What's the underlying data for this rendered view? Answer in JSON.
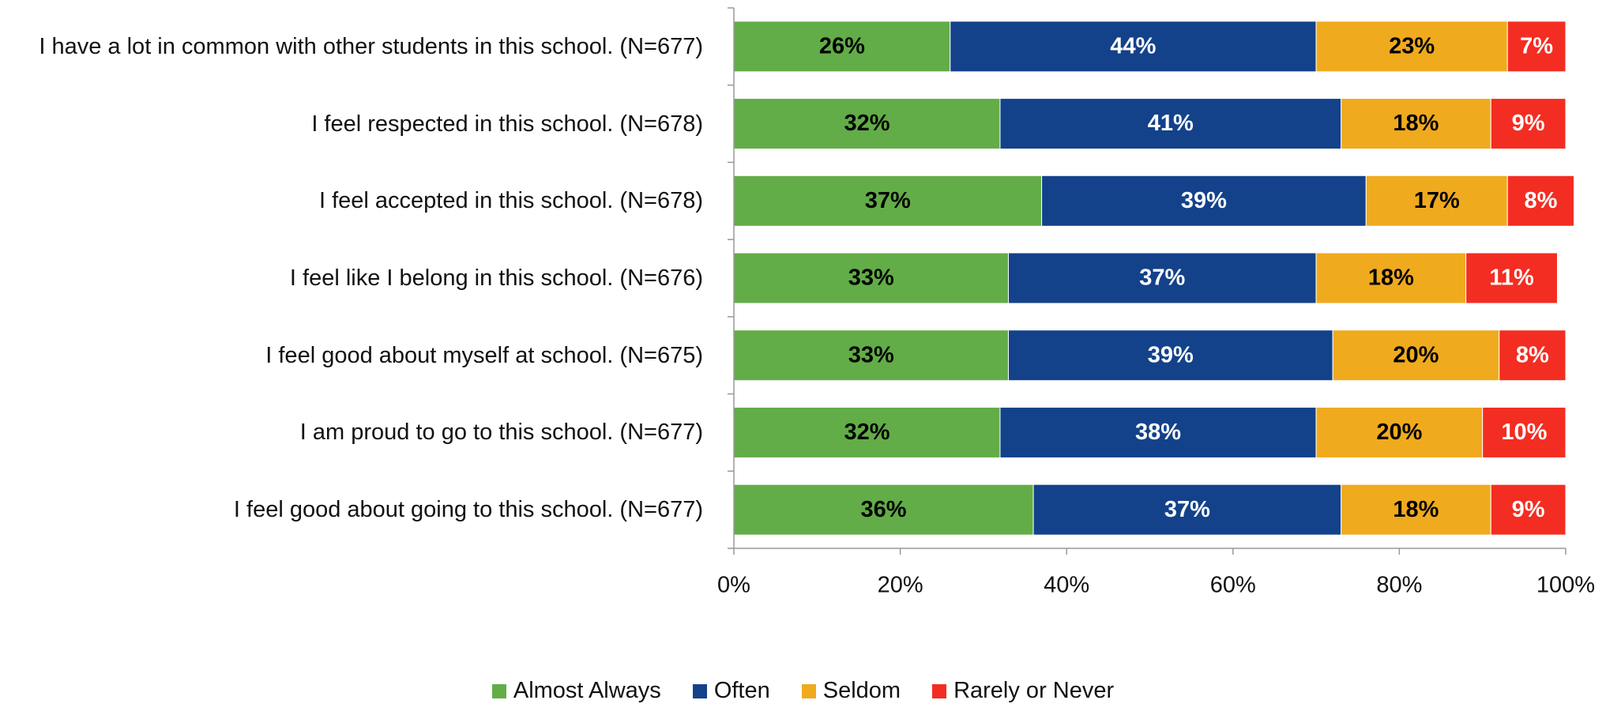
{
  "chart_data": {
    "type": "stacked_bar_horizontal",
    "categories": [
      "I have a lot in common with other students in this school. (N=677)",
      "I feel respected in this school. (N=678)",
      "I feel accepted in this school. (N=678)",
      "I feel like I belong in this school. (N=676)",
      "I feel good about myself at school. (N=675)",
      "I am proud to go to this school. (N=677)",
      "I feel good about going to this school. (N=677)"
    ],
    "series": [
      {
        "name": "Almost Always",
        "color": "#62ad47",
        "values": [
          26,
          32,
          37,
          33,
          33,
          32,
          36
        ],
        "value_labels": [
          "26%",
          "32%",
          "37%",
          "33%",
          "33%",
          "32%",
          "36%"
        ]
      },
      {
        "name": "Often",
        "color": "#13428a",
        "values": [
          44,
          41,
          39,
          37,
          39,
          38,
          37
        ],
        "value_labels": [
          "44%",
          "41%",
          "39%",
          "37%",
          "39%",
          "38%",
          "37%"
        ]
      },
      {
        "name": "Seldom",
        "color": "#f0aa1e",
        "values": [
          23,
          18,
          17,
          18,
          20,
          20,
          18
        ],
        "value_labels": [
          "23%",
          "18%",
          "17%",
          "18%",
          "20%",
          "20%",
          "18%"
        ]
      },
      {
        "name": "Rarely or Never",
        "color": "#f32d22",
        "values": [
          7,
          9,
          8,
          11,
          8,
          10,
          9
        ],
        "value_labels": [
          "7%",
          "9%",
          "8%",
          "11%",
          "8%",
          "10%",
          "9%"
        ]
      }
    ],
    "xlim": [
      0,
      100
    ],
    "xticks": [
      {
        "value": 0,
        "label": "0%"
      },
      {
        "value": 20,
        "label": "20%"
      },
      {
        "value": 40,
        "label": "40%"
      },
      {
        "value": 60,
        "label": "60%"
      },
      {
        "value": 80,
        "label": "80%"
      },
      {
        "value": 100,
        "label": "100%"
      }
    ],
    "legend": "bottom"
  }
}
